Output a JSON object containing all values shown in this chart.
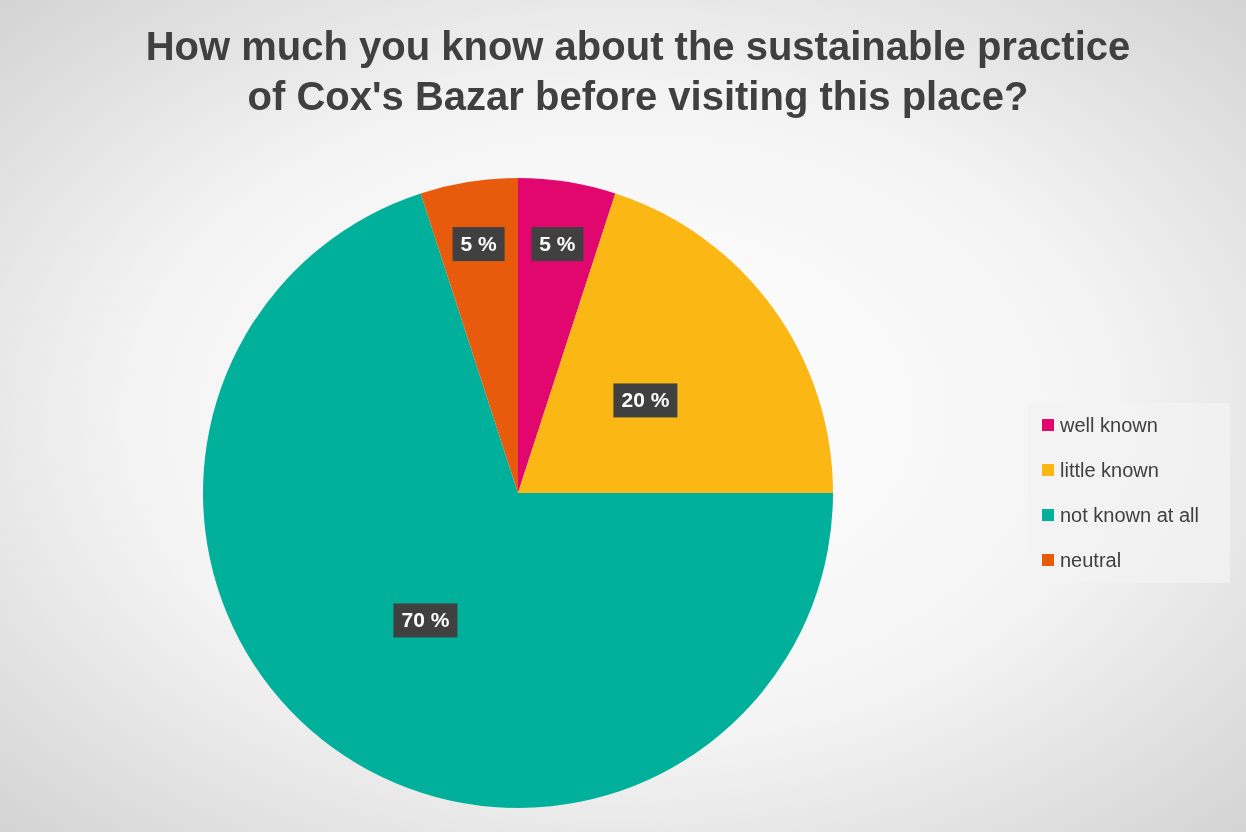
{
  "chart_data": {
    "type": "pie",
    "title": "How much you know about the sustainable practice of Cox's Bazar before visiting this place?",
    "categories": [
      "well known",
      "little known",
      "not known at all",
      "neutral"
    ],
    "values": [
      5,
      20,
      70,
      5
    ],
    "colors": [
      "#e2066f",
      "#fbb814",
      "#00b09b",
      "#e85a0c"
    ],
    "value_labels": [
      "5 %",
      "20 %",
      "70 %",
      "5 %"
    ],
    "legend": "right"
  }
}
